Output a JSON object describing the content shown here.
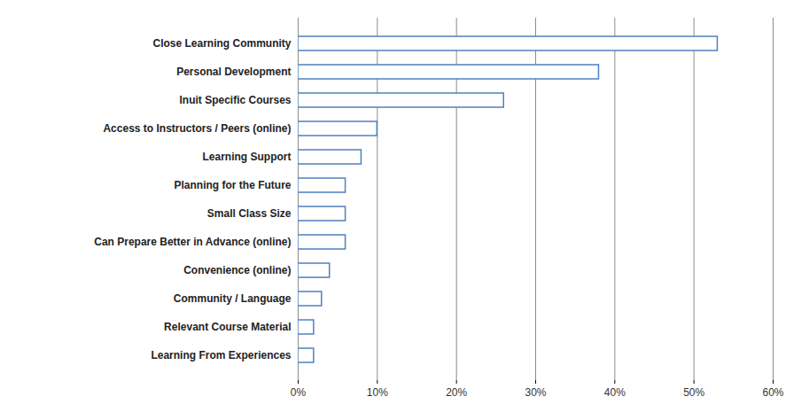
{
  "chart_data": {
    "type": "bar",
    "orientation": "horizontal",
    "categories": [
      "Close Learning Community",
      "Personal Development",
      "Inuit Specific Courses",
      "Access to Instructors / Peers (online)",
      "Learning Support",
      "Planning for the Future",
      "Small Class Size",
      "Can Prepare Better in Advance (online)",
      "Convenience (online)",
      "Community / Language",
      "Relevant Course Material",
      "Learning From Experiences"
    ],
    "values": [
      53,
      38,
      26,
      10,
      8,
      6,
      6,
      6,
      4,
      3,
      2,
      2
    ],
    "color": "#4f81bd",
    "xlim": [
      0,
      60
    ],
    "xticks": [
      {
        "value": 0,
        "label": "0%"
      },
      {
        "value": 10,
        "label": "10%"
      },
      {
        "value": 20,
        "label": "20%"
      },
      {
        "value": 30,
        "label": "30%"
      },
      {
        "value": 40,
        "label": "40%"
      },
      {
        "value": 50,
        "label": "50%"
      },
      {
        "value": 60,
        "label": "60%"
      }
    ],
    "grid": true
  }
}
